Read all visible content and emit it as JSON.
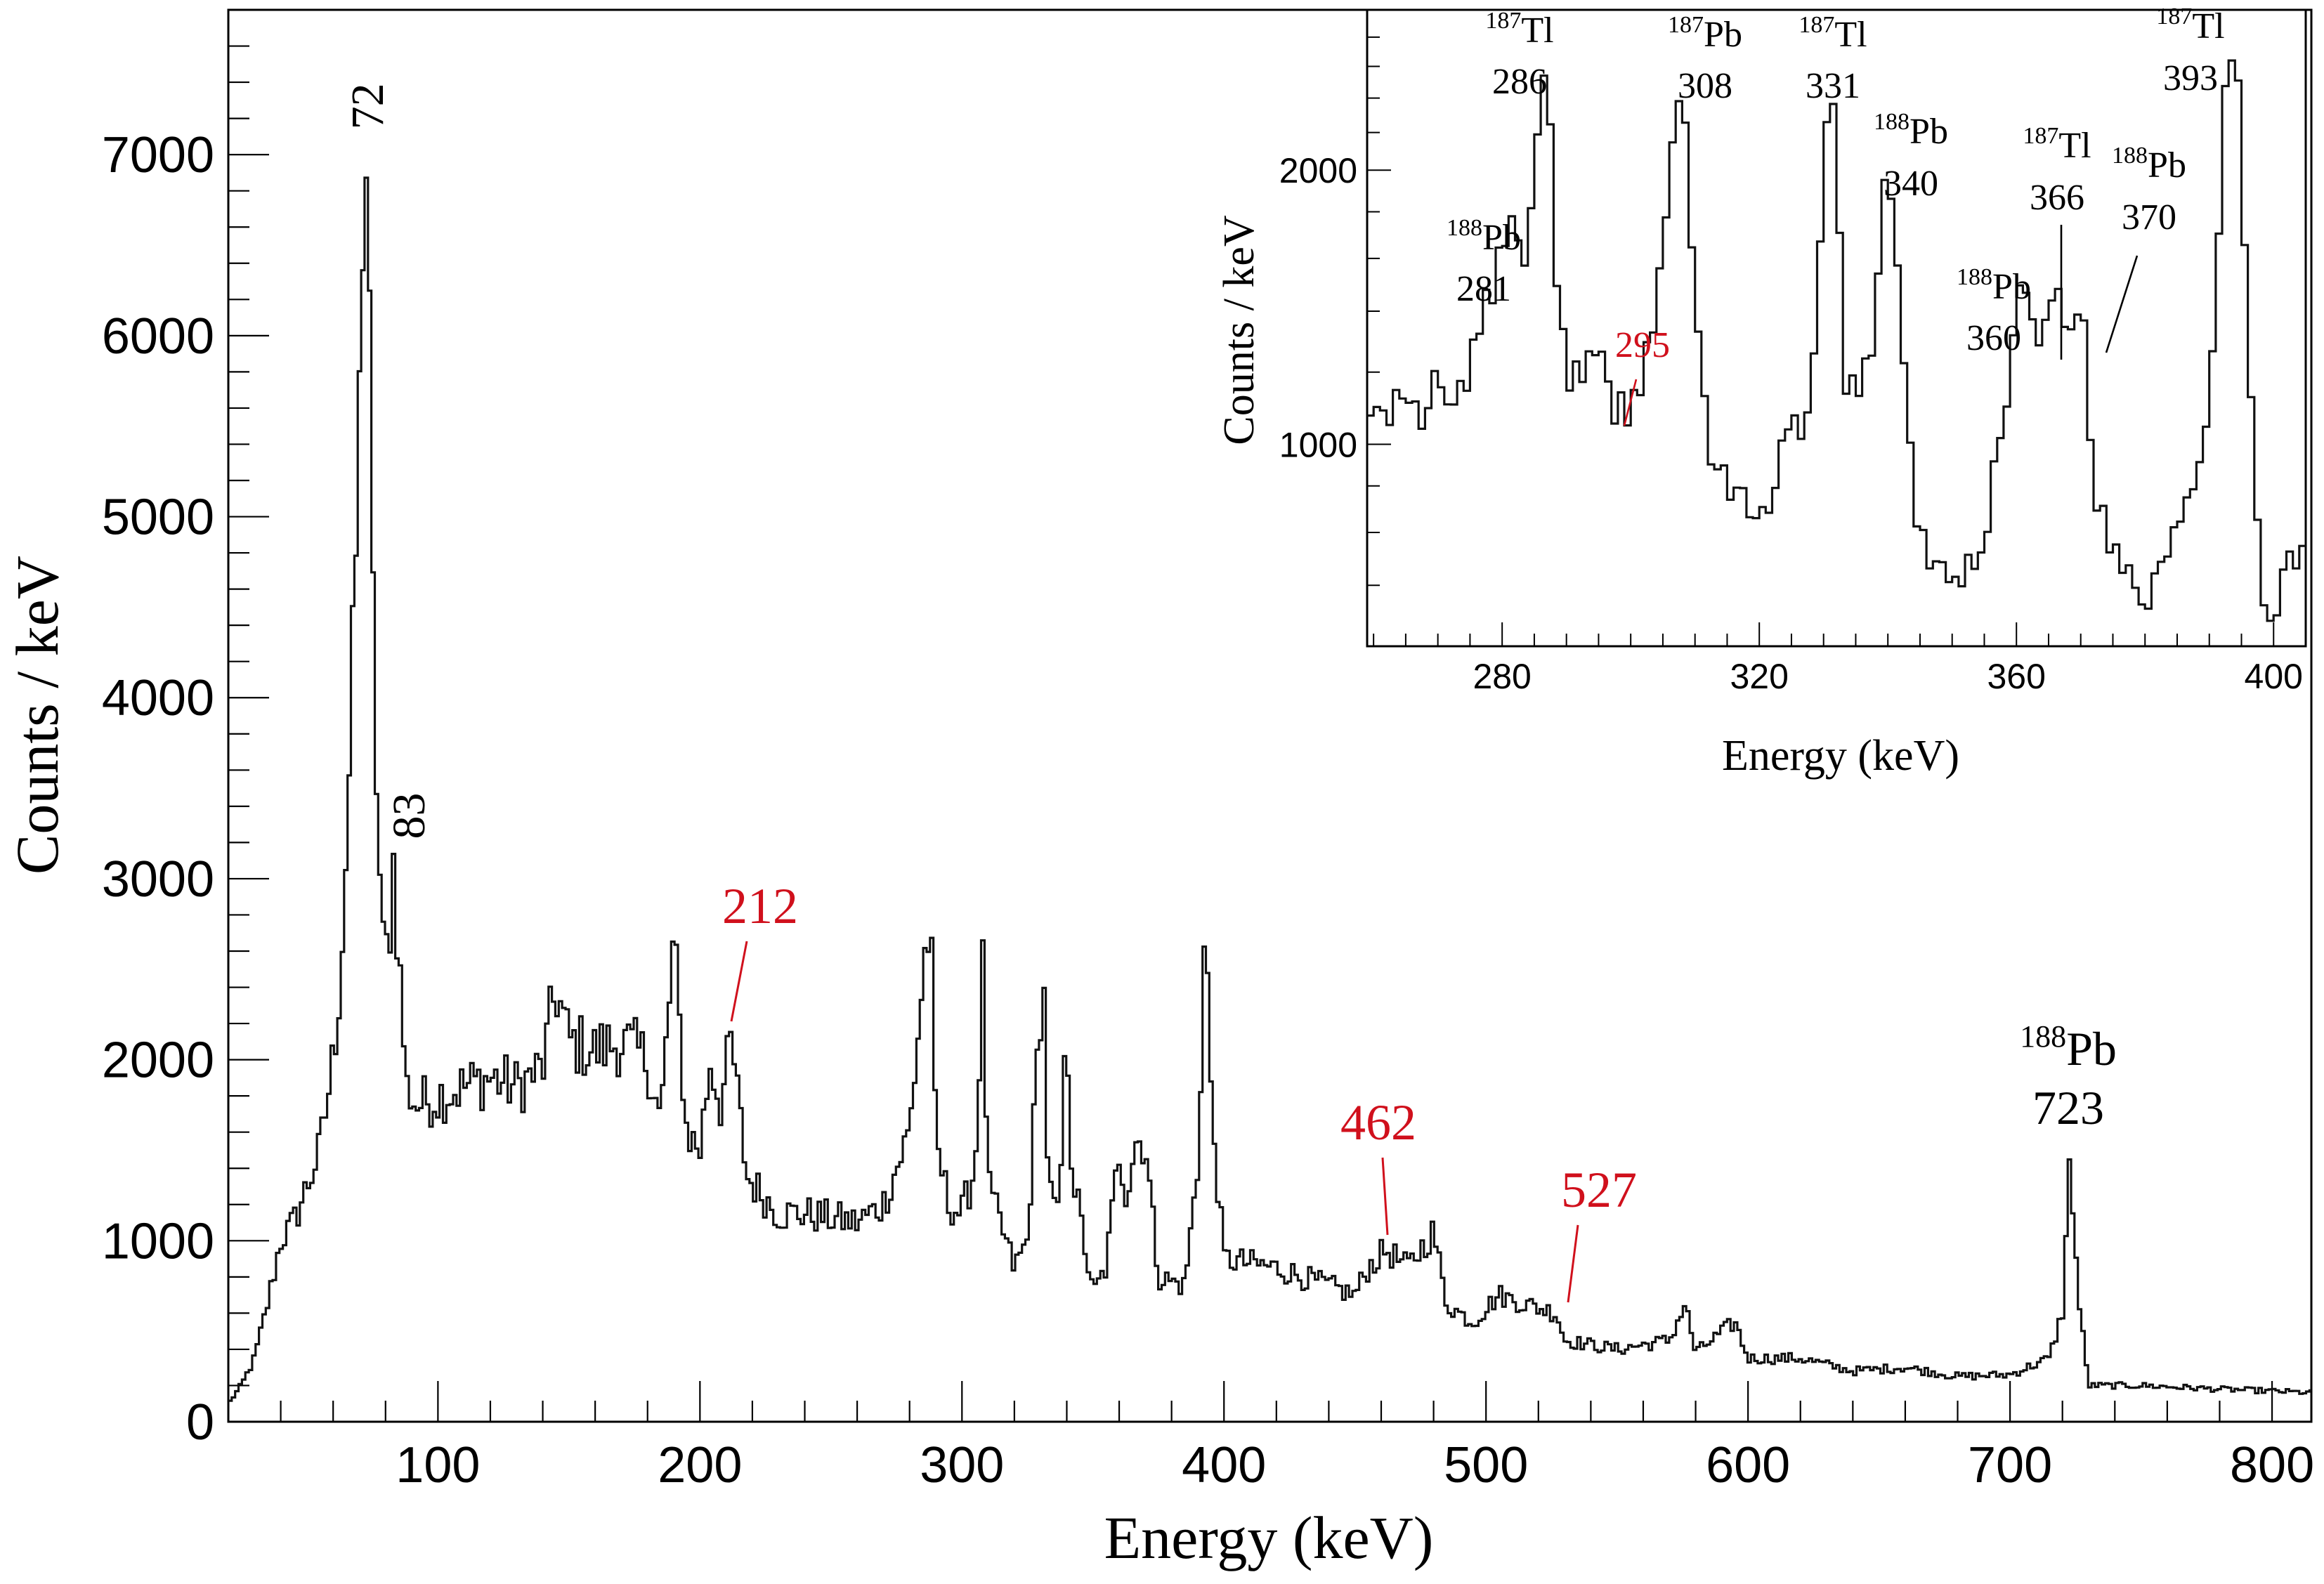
{
  "chart_data": [
    {
      "type": "line",
      "xlabel": "Energy (keV)",
      "ylabel": "Counts / keV",
      "xlim": [
        20,
        815
      ],
      "ylim": [
        0,
        7800
      ],
      "x_ticks": [
        "100",
        "200",
        "300",
        "400",
        "500",
        "600",
        "700",
        "800"
      ],
      "y_ticks": [
        "0",
        "1000",
        "2000",
        "3000",
        "4000",
        "5000",
        "6000",
        "7000"
      ],
      "x_tick_values": [
        100,
        200,
        300,
        400,
        500,
        600,
        700,
        800
      ],
      "y_tick_values": [
        0,
        1000,
        2000,
        3000,
        4000,
        5000,
        6000,
        7000
      ],
      "series": [
        {
          "points": [
            [
              20,
              100
            ],
            [
              25,
              200
            ],
            [
              30,
              350
            ],
            [
              35,
              650
            ],
            [
              40,
              1000
            ],
            [
              45,
              1100
            ],
            [
              50,
              1300
            ],
            [
              55,
              1500
            ],
            [
              60,
              2000
            ],
            [
              63,
              2500
            ],
            [
              66,
              3500
            ],
            [
              68,
              4400
            ],
            [
              70,
              5500
            ],
            [
              71,
              6500
            ],
            [
              72,
              7050
            ],
            [
              73,
              6900
            ],
            [
              74,
              5800
            ],
            [
              75,
              4600
            ],
            [
              77,
              3300
            ],
            [
              79,
              2600
            ],
            [
              81,
              2600
            ],
            [
              83,
              3100
            ],
            [
              85,
              2600
            ],
            [
              88,
              1850
            ],
            [
              92,
              1750
            ],
            [
              100,
              1800
            ],
            [
              110,
              1850
            ],
            [
              120,
              1900
            ],
            [
              130,
              1850
            ],
            [
              140,
              1950
            ],
            [
              145,
              2400
            ],
            [
              150,
              2100
            ],
            [
              160,
              2050
            ],
            [
              170,
              2100
            ],
            [
              180,
              2000
            ],
            [
              185,
              1650
            ],
            [
              190,
              2650
            ],
            [
              195,
              1600
            ],
            [
              200,
              1500
            ],
            [
              204,
              2000
            ],
            [
              208,
              1750
            ],
            [
              212,
              2100
            ],
            [
              218,
              1350
            ],
            [
              230,
              1150
            ],
            [
              240,
              1150
            ],
            [
              260,
              1100
            ],
            [
              270,
              1200
            ],
            [
              280,
              1600
            ],
            [
              286,
              2600
            ],
            [
              288,
              2750
            ],
            [
              290,
              1550
            ],
            [
              295,
              1200
            ],
            [
              300,
              1150
            ],
            [
              305,
              1400
            ],
            [
              308,
              2500
            ],
            [
              310,
              1300
            ],
            [
              320,
              850
            ],
            [
              325,
              1000
            ],
            [
              331,
              2550
            ],
            [
              333,
              1300
            ],
            [
              337,
              1100
            ],
            [
              340,
              2200
            ],
            [
              342,
              1400
            ],
            [
              350,
              700
            ],
            [
              355,
              850
            ],
            [
              360,
              1500
            ],
            [
              363,
              1250
            ],
            [
              366,
              1550
            ],
            [
              370,
              1550
            ],
            [
              375,
              800
            ],
            [
              385,
              750
            ],
            [
              390,
              1400
            ],
            [
              393,
              2850
            ],
            [
              395,
              1800
            ],
            [
              400,
              900
            ],
            [
              420,
              850
            ],
            [
              430,
              800
            ],
            [
              440,
              750
            ],
            [
              450,
              700
            ],
            [
              455,
              850
            ],
            [
              462,
              950
            ],
            [
              470,
              850
            ],
            [
              480,
              1050
            ],
            [
              485,
              650
            ],
            [
              495,
              550
            ],
            [
              505,
              700
            ],
            [
              515,
              650
            ],
            [
              527,
              600
            ],
            [
              530,
              450
            ],
            [
              550,
              400
            ],
            [
              570,
              450
            ],
            [
              576,
              650
            ],
            [
              580,
              380
            ],
            [
              595,
              550
            ],
            [
              600,
              350
            ],
            [
              620,
              350
            ],
            [
              640,
              280
            ],
            [
              660,
              300
            ],
            [
              680,
              250
            ],
            [
              700,
              260
            ],
            [
              715,
              350
            ],
            [
              720,
              600
            ],
            [
              723,
              1480
            ],
            [
              726,
              700
            ],
            [
              730,
              200
            ],
            [
              750,
              200
            ],
            [
              780,
              180
            ],
            [
              800,
              170
            ],
            [
              815,
              160
            ]
          ]
        }
      ],
      "annotations": [
        {
          "text": "72",
          "x": 72,
          "color": "black",
          "rotated": true
        },
        {
          "text": "83",
          "x": 83,
          "color": "black",
          "rotated": true
        },
        {
          "text": "212",
          "x": 212,
          "color": "#d0101c"
        },
        {
          "text": "462",
          "x": 462,
          "color": "#d0101c"
        },
        {
          "text": "527",
          "x": 527,
          "color": "#d0101c"
        },
        {
          "text": "723",
          "x": 723,
          "color": "black",
          "nucleus": {
            "mass": "188",
            "element": "Pb"
          }
        }
      ]
    },
    {
      "type": "line",
      "xlabel": "Energy (keV)",
      "ylabel": "Counts / keV",
      "xlim": [
        259,
        405
      ],
      "ylim": [
        600,
        3000
      ],
      "log_y": true,
      "x_ticks": [
        "280",
        "320",
        "360",
        "400"
      ],
      "y_ticks": [
        "1000",
        "2000"
      ],
      "x_tick_values": [
        280,
        320,
        360,
        400
      ],
      "y_tick_values": [
        1000,
        2000
      ],
      "series": [
        {
          "points": [
            [
              259,
              1100
            ],
            [
              262,
              1050
            ],
            [
              265,
              1150
            ],
            [
              268,
              1000
            ],
            [
              270,
              1250
            ],
            [
              272,
              1050
            ],
            [
              274,
              1150
            ],
            [
              276,
              1300
            ],
            [
              278,
              1450
            ],
            [
              280,
              1650
            ],
            [
              281,
              1750
            ],
            [
              283,
              1550
            ],
            [
              285,
              1900
            ],
            [
              286,
              2450
            ],
            [
              287,
              2700
            ],
            [
              288,
              1650
            ],
            [
              290,
              1200
            ],
            [
              292,
              1200
            ],
            [
              295,
              1250
            ],
            [
              297,
              1100
            ],
            [
              300,
              1100
            ],
            [
              302,
              1200
            ],
            [
              304,
              1450
            ],
            [
              306,
              1900
            ],
            [
              308,
              2500
            ],
            [
              309,
              2000
            ],
            [
              310,
              1400
            ],
            [
              312,
              1000
            ],
            [
              315,
              900
            ],
            [
              318,
              850
            ],
            [
              320,
              800
            ],
            [
              322,
              900
            ],
            [
              325,
              1050
            ],
            [
              327,
              1000
            ],
            [
              329,
              1300
            ],
            [
              331,
              2550
            ],
            [
              332,
              2100
            ],
            [
              333,
              1200
            ],
            [
              335,
              1150
            ],
            [
              338,
              1300
            ],
            [
              340,
              2150
            ],
            [
              341,
              1700
            ],
            [
              343,
              1050
            ],
            [
              345,
              780
            ],
            [
              348,
              720
            ],
            [
              350,
              700
            ],
            [
              353,
              730
            ],
            [
              356,
              860
            ],
            [
              359,
              1200
            ],
            [
              360,
              1450
            ],
            [
              362,
              1500
            ],
            [
              364,
              1250
            ],
            [
              366,
              1500
            ],
            [
              368,
              1300
            ],
            [
              370,
              1500
            ],
            [
              372,
              900
            ],
            [
              375,
              760
            ],
            [
              378,
              720
            ],
            [
              380,
              670
            ],
            [
              383,
              760
            ],
            [
              386,
              850
            ],
            [
              389,
              1000
            ],
            [
              391,
              1400
            ],
            [
              393,
              2750
            ],
            [
              394,
              2800
            ],
            [
              396,
              1200
            ],
            [
              398,
              700
            ],
            [
              400,
              650
            ],
            [
              402,
              750
            ],
            [
              405,
              780
            ]
          ]
        }
      ],
      "annotations": [
        {
          "nucleus": {
            "mass": "188",
            "element": "Pb"
          },
          "energy": "281",
          "color": "black"
        },
        {
          "nucleus": {
            "mass": "187",
            "element": "Tl"
          },
          "energy": "286",
          "color": "black"
        },
        {
          "energy": "295",
          "color": "#d0101c"
        },
        {
          "nucleus": {
            "mass": "187",
            "element": "Pb"
          },
          "energy": "308",
          "color": "black"
        },
        {
          "nucleus": {
            "mass": "187",
            "element": "Tl"
          },
          "energy": "331",
          "color": "black"
        },
        {
          "nucleus": {
            "mass": "188",
            "element": "Pb"
          },
          "energy": "340",
          "color": "black"
        },
        {
          "nucleus": {
            "mass": "188",
            "element": "Pb"
          },
          "energy": "360",
          "color": "black"
        },
        {
          "nucleus": {
            "mass": "187",
            "element": "Tl"
          },
          "energy": "366",
          "color": "black"
        },
        {
          "nucleus": {
            "mass": "188",
            "element": "Pb"
          },
          "energy": "370",
          "color": "black"
        },
        {
          "nucleus": {
            "mass": "187",
            "element": "Tl"
          },
          "energy": "393",
          "color": "black"
        }
      ]
    }
  ],
  "colors": {
    "line": "#111111",
    "highlight": "#d0101c",
    "axis": "#000000",
    "background": "#ffffff"
  }
}
